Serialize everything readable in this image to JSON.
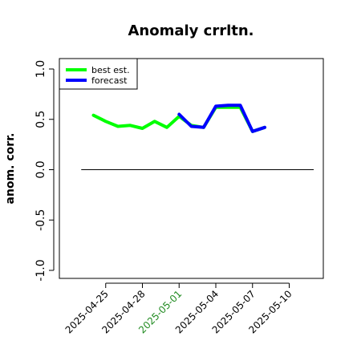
{
  "chart_data": {
    "type": "line",
    "title": "Anomaly crrltn.",
    "xlabel": "",
    "ylabel": "anom. corr.",
    "ylim": [
      -1.0,
      1.0
    ],
    "yticks": [
      -1.0,
      -0.5,
      0.0,
      0.5,
      1.0
    ],
    "ytick_labels": [
      "-1.0",
      "-0.5",
      "0.0",
      "0.5",
      "1.0"
    ],
    "xlim": [
      "2025-04-22",
      "2025-05-12"
    ],
    "xticks": [
      "2025-04-25",
      "2025-04-28",
      "2025-05-01",
      "2025-05-04",
      "2025-05-07",
      "2025-05-10"
    ],
    "highlight_xtick": "2025-05-01",
    "highlight_color": "#228b22",
    "reference_line": {
      "y": 0.0,
      "color": "#000000"
    },
    "grid": false,
    "legend_position": "top-left",
    "series": [
      {
        "name": "best est.",
        "color": "#00ff00",
        "points": [
          [
            "2025-04-24",
            0.54
          ],
          [
            "2025-04-25",
            0.48
          ],
          [
            "2025-04-26",
            0.43
          ],
          [
            "2025-04-27",
            0.44
          ],
          [
            "2025-04-28",
            0.41
          ],
          [
            "2025-04-29",
            0.48
          ],
          [
            "2025-04-30",
            0.42
          ],
          [
            "2025-05-01",
            0.53
          ],
          [
            "2025-05-02",
            0.44
          ],
          [
            "2025-05-03",
            0.42
          ],
          [
            "2025-05-04",
            0.62
          ],
          [
            "2025-05-05",
            0.62
          ],
          [
            "2025-05-06",
            0.62
          ],
          [
            "2025-05-07",
            0.38
          ],
          [
            "2025-05-08",
            0.42
          ]
        ]
      },
      {
        "name": "forecast",
        "color": "#0000ff",
        "points": [
          [
            "2025-05-01",
            0.55
          ],
          [
            "2025-05-02",
            0.43
          ],
          [
            "2025-05-03",
            0.42
          ],
          [
            "2025-05-04",
            0.63
          ],
          [
            "2025-05-05",
            0.64
          ],
          [
            "2025-05-06",
            0.64
          ],
          [
            "2025-05-07",
            0.38
          ],
          [
            "2025-05-08",
            0.42
          ]
        ]
      }
    ]
  }
}
